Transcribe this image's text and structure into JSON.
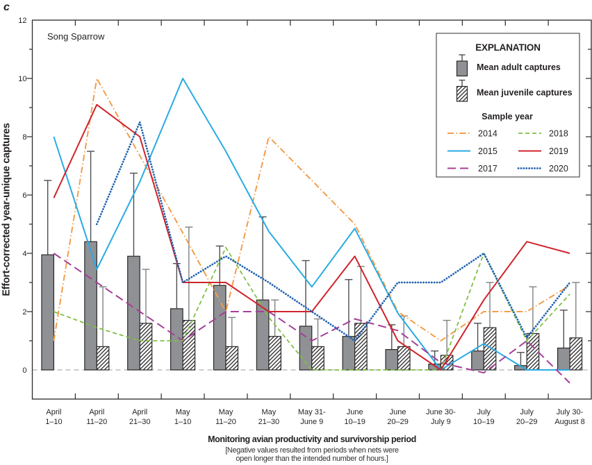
{
  "panel_letter": "c",
  "plot_label": "Song Sparrow",
  "legend": {
    "title": "EXPLANATION",
    "adult_label": "Mean adult captures",
    "juvenile_label": "Mean juvenile captures",
    "sample_year_title": "Sample year",
    "years_left_column": [
      "2014",
      "2015",
      "2017"
    ],
    "years_right_column": [
      "2018",
      "2019",
      "2020"
    ]
  },
  "colors": {
    "text": "#231f20",
    "frame": "#2b2829",
    "bar_adult_fill": "#8f9194",
    "bar_outline": "#2b2829",
    "hatch_line": "#232021",
    "whisker_adult": "#4c4d4f",
    "whisker_juvenile": "#7e8083",
    "zero_line": "#aeb0b3",
    "year_2014": "#f49d4a",
    "year_2015": "#29abe2",
    "year_2017": "#a53f97",
    "year_2018": "#7fbf44",
    "year_2019": "#cf232b",
    "year_2020": "#2063ae"
  },
  "chart_data": {
    "type": "bar+line",
    "title": "Song Sparrow",
    "xlabel": "Monitoring avian productivity and survivorship period",
    "x_note": [
      "[Negative values resulted from periods when nets were",
      "open longer than the intended number of hours.]"
    ],
    "ylabel": "Effort-corrected year-unique captures",
    "ylim": [
      -1,
      12
    ],
    "yticks_major": [
      0,
      2,
      4,
      6,
      8,
      10,
      12
    ],
    "yticks_minor": [
      1,
      3,
      5,
      7,
      9,
      11
    ],
    "grid": false,
    "legend_position": "upper right",
    "categories": [
      [
        "April",
        "1–10"
      ],
      [
        "April",
        "11–20"
      ],
      [
        "April",
        "21–30"
      ],
      [
        "May",
        "1–10"
      ],
      [
        "May",
        "11–20"
      ],
      [
        "May",
        "21–30"
      ],
      [
        "May 31-",
        "June 9"
      ],
      [
        "June",
        "10–19"
      ],
      [
        "June",
        "20–29"
      ],
      [
        "June 30-",
        "July 9"
      ],
      [
        "July",
        "10–19"
      ],
      [
        "July",
        "20–29"
      ],
      [
        "July 30-",
        "August 8"
      ]
    ],
    "bar_series": [
      {
        "name": "Mean adult captures",
        "style": "solid-gray",
        "values": [
          3.95,
          4.4,
          3.9,
          2.1,
          2.9,
          2.4,
          1.5,
          1.15,
          0.7,
          0.2,
          0.65,
          0.15,
          0.75
        ],
        "error_top": [
          6.5,
          7.5,
          6.75,
          3.65,
          4.25,
          5.25,
          3.75,
          3.1,
          1.55,
          0.65,
          1.6,
          0.6,
          2.05
        ]
      },
      {
        "name": "Mean juvenile captures",
        "style": "hatched",
        "values": [
          null,
          0.8,
          1.6,
          1.7,
          0.8,
          1.15,
          0.8,
          1.6,
          0.8,
          0.5,
          1.45,
          1.25,
          1.1
        ],
        "error_top": [
          null,
          2.85,
          3.45,
          4.9,
          1.8,
          2.4,
          1.75,
          3.55,
          1.85,
          1.7,
          3.0,
          2.85,
          3.0
        ]
      }
    ],
    "line_series": [
      {
        "name": "2014",
        "color_key": "year_2014",
        "dash": "dashdot",
        "values": [
          1.0,
          10.0,
          7.35,
          4.7,
          2.0,
          8.0,
          6.5,
          5.0,
          2.0,
          1.0,
          2.0,
          2.0,
          2.9
        ]
      },
      {
        "name": "2015",
        "color_key": "year_2015",
        "dash": "solid",
        "values": [
          8.0,
          3.45,
          6.45,
          10.0,
          7.5,
          4.75,
          2.85,
          4.85,
          1.95,
          0.0,
          0.9,
          0.0,
          0.0
        ]
      },
      {
        "name": "2017",
        "color_key": "year_2017",
        "dash": "longdash",
        "values": [
          4.0,
          3.0,
          2.0,
          1.0,
          2.0,
          2.0,
          1.0,
          1.75,
          1.35,
          0.25,
          -0.1,
          1.0,
          -0.45
        ]
      },
      {
        "name": "2018",
        "color_key": "year_2018",
        "dash": "shortdash",
        "values": [
          2.0,
          1.45,
          1.0,
          1.0,
          4.2,
          1.8,
          0.0,
          0.0,
          0.0,
          0.0,
          4.0,
          1.0,
          2.6
        ]
      },
      {
        "name": "2019",
        "color_key": "year_2019",
        "dash": "solid",
        "values": [
          5.9,
          9.1,
          8.0,
          3.0,
          3.0,
          2.0,
          2.0,
          3.9,
          1.0,
          0.0,
          2.4,
          4.4,
          4.0
        ]
      },
      {
        "name": "2020",
        "color_key": "year_2020",
        "dash": "dotted",
        "values": [
          null,
          5.0,
          8.5,
          3.0,
          3.9,
          3.0,
          2.0,
          1.0,
          3.0,
          3.0,
          4.0,
          1.1,
          3.0
        ]
      }
    ]
  }
}
